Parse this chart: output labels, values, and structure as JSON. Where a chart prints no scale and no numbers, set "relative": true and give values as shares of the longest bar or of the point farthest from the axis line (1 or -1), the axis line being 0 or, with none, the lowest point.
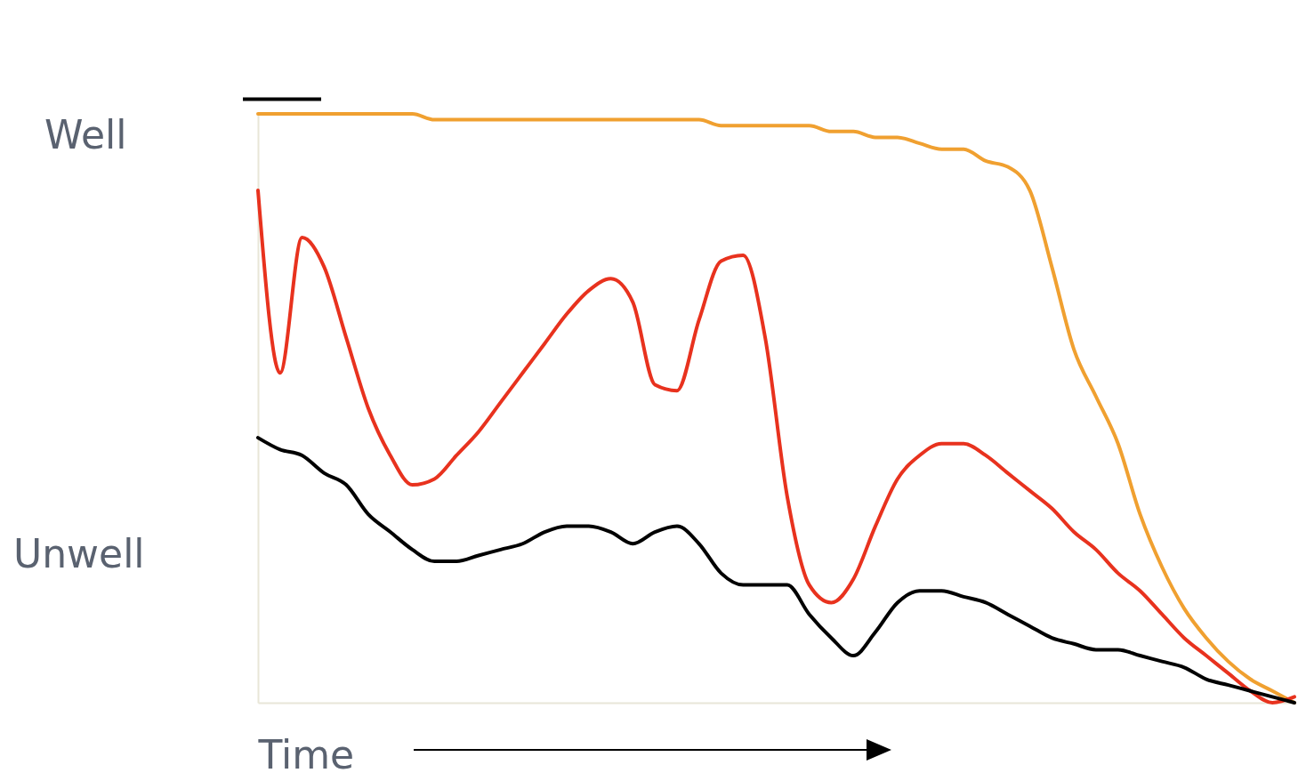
{
  "chart_data": {
    "type": "line",
    "relative": true,
    "xlabel": "Time",
    "annotations": [
      "Well",
      "Unwell"
    ],
    "tick_labels": false,
    "grid": false,
    "marker": "none",
    "line_style": "solid",
    "categories": [
      null,
      null,
      null,
      null,
      null,
      null,
      null,
      null,
      null,
      null,
      null,
      null,
      null,
      null,
      null,
      null,
      null,
      null,
      null,
      null,
      null,
      null,
      null,
      null,
      null,
      null,
      null,
      null,
      null,
      null,
      null,
      null,
      null,
      null,
      null,
      null,
      null,
      null,
      null,
      null,
      null,
      null,
      null,
      null,
      null,
      null,
      null,
      null
    ],
    "series": [
      {
        "color": "#f0a030",
        "values": [
          1,
          1,
          1,
          1,
          1,
          1,
          1,
          1,
          0.99,
          0.99,
          0.99,
          0.99,
          0.99,
          0.99,
          0.99,
          0.99,
          0.99,
          0.99,
          0.99,
          0.99,
          0.99,
          0.98,
          0.98,
          0.98,
          0.98,
          0.98,
          0.97,
          0.97,
          0.96,
          0.96,
          0.95,
          0.94,
          0.94,
          0.92,
          0.91,
          0.87,
          0.74,
          0.6,
          0.52,
          0.44,
          0.32,
          0.23,
          0.16,
          0.11,
          0.07,
          0.04,
          0.02,
          0
        ]
      },
      {
        "color": "#e8321e",
        "values": [
          0.87,
          0.56,
          0.79,
          0.74,
          0.62,
          0.5,
          0.42,
          0.37,
          0.38,
          0.42,
          0.46,
          0.51,
          0.56,
          0.61,
          0.66,
          0.7,
          0.72,
          0.68,
          0.54,
          0.53,
          0.65,
          0.75,
          0.76,
          0.62,
          0.35,
          0.2,
          0.17,
          0.21,
          0.3,
          0.38,
          0.42,
          0.44,
          0.44,
          0.42,
          0.39,
          0.36,
          0.33,
          0.29,
          0.26,
          0.22,
          0.19,
          0.15,
          0.11,
          0.08,
          0.05,
          0.02,
          0,
          0.01
        ]
      },
      {
        "color": "#000000",
        "values": [
          0.45,
          0.43,
          0.42,
          0.39,
          0.37,
          0.32,
          0.29,
          0.26,
          0.24,
          0.24,
          0.25,
          0.26,
          0.27,
          0.29,
          0.3,
          0.3,
          0.29,
          0.27,
          0.29,
          0.3,
          0.27,
          0.22,
          0.2,
          0.2,
          0.2,
          0.15,
          0.11,
          0.08,
          0.12,
          0.17,
          0.19,
          0.19,
          0.18,
          0.17,
          0.15,
          0.13,
          0.11,
          0.1,
          0.09,
          0.09,
          0.08,
          0.07,
          0.06,
          0.04,
          0.03,
          0.02,
          0.01,
          0
        ]
      }
    ]
  }
}
